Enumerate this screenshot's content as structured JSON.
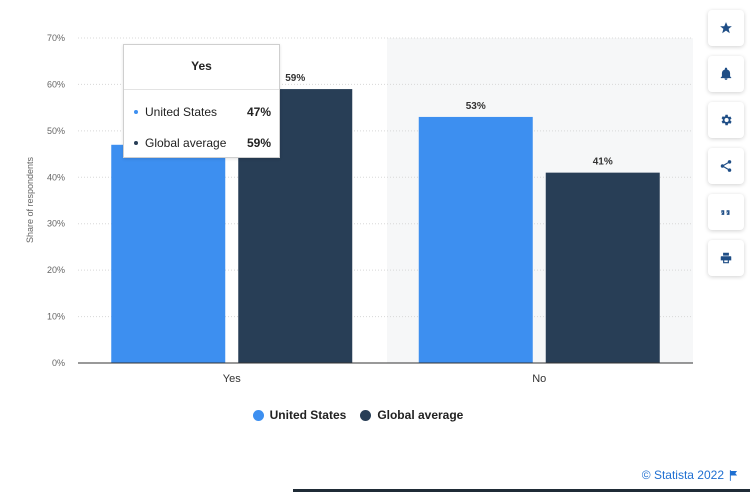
{
  "chart_data": {
    "type": "bar",
    "categories": [
      "Yes",
      "No"
    ],
    "series": [
      {
        "name": "United States",
        "values": [
          47,
          53
        ],
        "color": "#3d8ff0"
      },
      {
        "name": "Global average",
        "values": [
          59,
          41
        ],
        "color": "#283e56"
      }
    ],
    "ylabel": "Share of respondents",
    "ylim": [
      0,
      70
    ],
    "yticks": [
      "0%",
      "10%",
      "20%",
      "30%",
      "40%",
      "50%",
      "60%",
      "70%"
    ],
    "data_labels": [
      "47%",
      "53%",
      "59%",
      "41%"
    ],
    "grid": true,
    "legend_position": "bottom",
    "highlighted_category": "No"
  },
  "tooltip": {
    "title": "Yes",
    "rows": [
      {
        "name": "United States",
        "value": "47%"
      },
      {
        "name": "Global average",
        "value": "59%"
      }
    ]
  },
  "legend": {
    "items": [
      {
        "label": "United States",
        "color": "#3d8ff0"
      },
      {
        "label": "Global average",
        "color": "#283e56"
      }
    ]
  },
  "sidebar": {
    "buttons": [
      {
        "icon": "star-icon"
      },
      {
        "icon": "bell-icon"
      },
      {
        "icon": "gear-icon"
      },
      {
        "icon": "share-icon"
      },
      {
        "icon": "quote-icon"
      },
      {
        "icon": "print-icon"
      }
    ]
  },
  "credit": {
    "text": "© Statista 2022"
  }
}
